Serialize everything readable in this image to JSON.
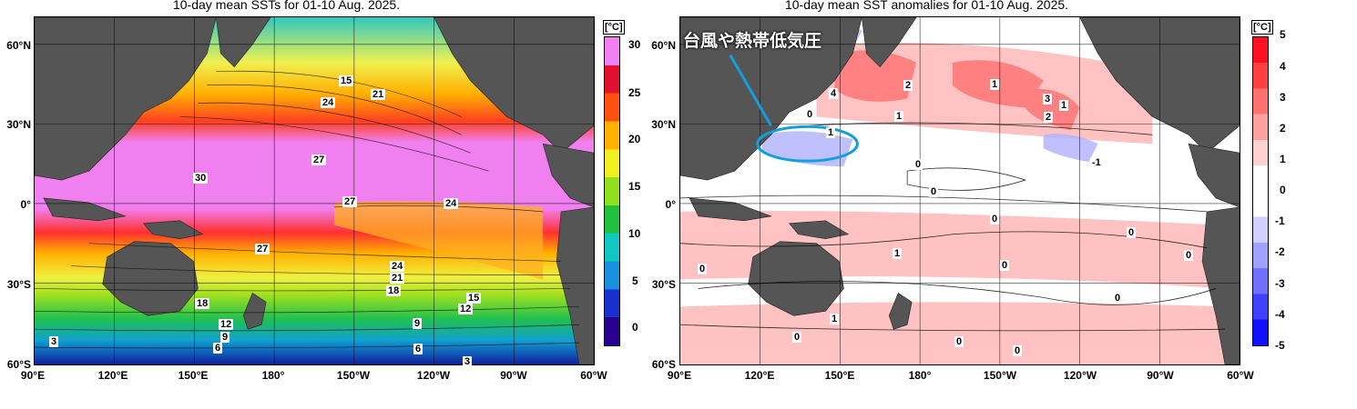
{
  "left_map": {
    "title": "10-day mean SSTs for 01-10 Aug. 2025.",
    "lat_labels": [
      "60°N",
      "30°N",
      "0°",
      "30°S",
      "60°S"
    ],
    "lon_labels": [
      "90°E",
      "120°E",
      "150°E",
      "180°",
      "150°W",
      "120°W",
      "90°W",
      "60°W"
    ],
    "colorbar": {
      "unit": "[°C]",
      "ticks": [
        "30",
        "25",
        "20",
        "15",
        "10",
        "5",
        "0"
      ],
      "colors": [
        "#2a0090",
        "#1830d0",
        "#1890e0",
        "#10c8c0",
        "#20c040",
        "#90e020",
        "#f0f020",
        "#ffb000",
        "#ff5010",
        "#e01030",
        "#f080f0"
      ]
    },
    "contour_labels": [
      "15",
      "24",
      "21",
      "27",
      "30",
      "27",
      "24",
      "27",
      "24",
      "21",
      "18",
      "18",
      "15",
      "12",
      "12",
      "9",
      "9",
      "6",
      "6",
      "3",
      "3"
    ]
  },
  "right_map": {
    "title": "10-day mean SST anomalies for 01-10 Aug. 2025.",
    "lat_labels": [
      "60°N",
      "30°N",
      "0°",
      "30°S",
      "60°S"
    ],
    "lon_labels": [
      "90°E",
      "120°E",
      "150°E",
      "180°",
      "150°W",
      "120°W",
      "90°W",
      "60°W"
    ],
    "colorbar": {
      "unit": "[°C]",
      "ticks": [
        "5",
        "4",
        "3",
        "2",
        "1",
        "0",
        "-1",
        "-2",
        "-3",
        "-4",
        "-5"
      ],
      "colors": [
        "#ff1020",
        "#ff4040",
        "#ff7070",
        "#ffa0a0",
        "#ffd0d0",
        "#ffffff",
        "#ffffff",
        "#d0d0ff",
        "#a0a0ff",
        "#7070ff",
        "#4040ff",
        "#1010ff"
      ]
    },
    "contour_labels": [
      "0",
      "4",
      "2",
      "1",
      "3",
      "1",
      "2",
      "1",
      "1",
      "-1",
      "0",
      "0",
      "0",
      "0",
      "1",
      "0",
      "0",
      "0",
      "0",
      "1",
      "0",
      "0",
      "0"
    ],
    "annotation": "台風や熱帯低気圧"
  }
}
